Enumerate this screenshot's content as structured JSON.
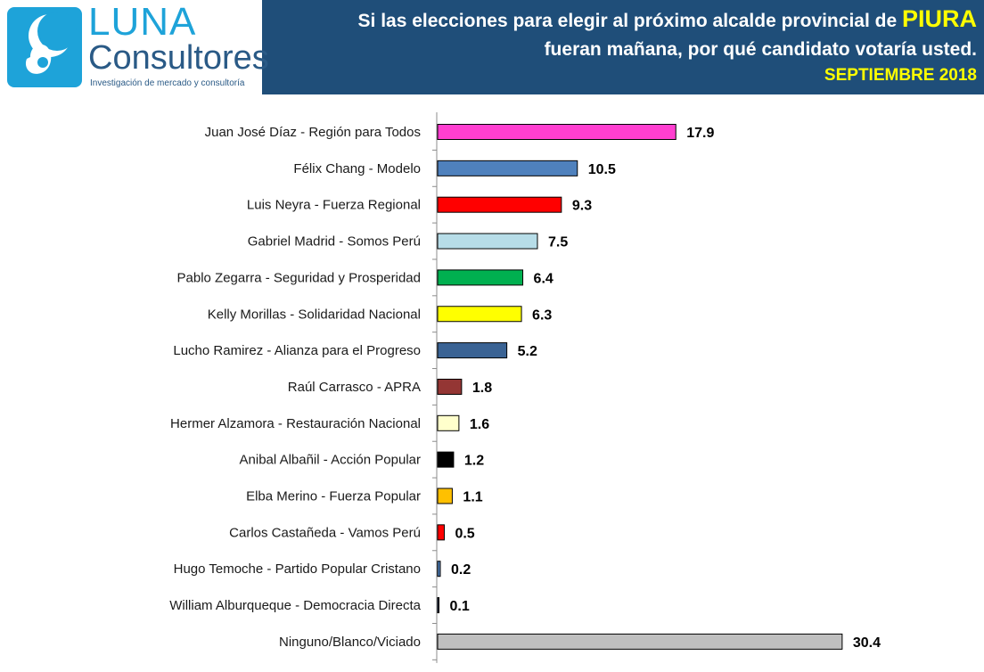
{
  "header": {
    "logo": {
      "brand_top": "LUNA",
      "brand_bottom": "Consultores",
      "tagline": "Investigación de mercado y consultoría"
    },
    "title_line1": "Si las elecciones para elegir al próximo alcalde provincial de",
    "title_highlight": "PIURA",
    "title_line2": "fueran mañana, por qué candidato votaría usted.",
    "title_date": "SEPTIEMBRE 2018",
    "colors": {
      "background": "#1f4e79",
      "highlight": "#ffff00",
      "text": "#ffffff"
    }
  },
  "chart_data": {
    "type": "bar",
    "orientation": "horizontal",
    "title": "",
    "xlabel": "",
    "ylabel": "",
    "xlim": [
      0,
      31
    ],
    "grid": false,
    "legend": "none",
    "categories": [
      "Juan José Díaz - Región para Todos",
      "Félix Chang - Modelo",
      "Luis Neyra - Fuerza Regional",
      "Gabriel Madrid - Somos Perú",
      "Pablo Zegarra - Seguridad y Prosperidad",
      "Kelly Morillas - Solidaridad Nacional",
      "Lucho Ramirez - Alianza para el Progreso",
      "Raúl Carrasco - APRA",
      "Hermer Alzamora - Restauración Nacional",
      "Anibal Albañil - Acción Popular",
      "Elba Merino - Fuerza Popular",
      "Carlos Castañeda - Vamos Perú",
      "Hugo Temoche - Partido Popular Cristano",
      "William Alburqueque - Democracia Directa",
      "Ninguno/Blanco/Viciado"
    ],
    "values": [
      17.9,
      10.5,
      9.3,
      7.5,
      6.4,
      6.3,
      5.2,
      1.8,
      1.6,
      1.2,
      1.1,
      0.5,
      0.2,
      0.1,
      30.4
    ],
    "value_labels": [
      "17.9",
      "10.5",
      "9.3",
      "7.5",
      "6.4",
      "6.3",
      "5.2",
      "1.8",
      "1.6",
      "1.2",
      "1.1",
      "0.5",
      "0.2",
      "0.1",
      "30.4"
    ],
    "colors": [
      "#ff3fd0",
      "#4f81bd",
      "#ff0000",
      "#b7dde8",
      "#00b050",
      "#ffff00",
      "#3a6394",
      "#943634",
      "#ffffcc",
      "#000000",
      "#ffc000",
      "#ff0000",
      "#4f81bd",
      "#1f3864",
      "#bfbfbf"
    ]
  }
}
